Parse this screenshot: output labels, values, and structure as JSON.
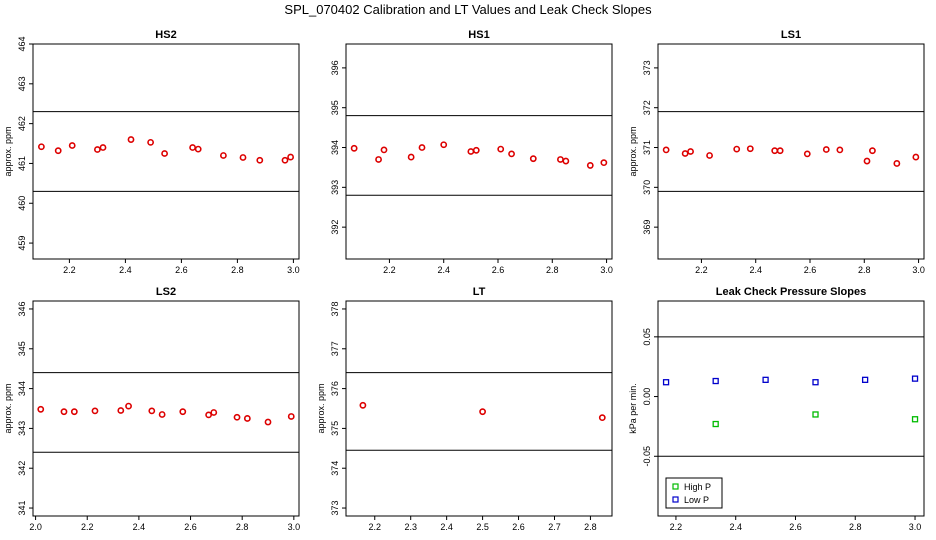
{
  "figure": {
    "title": "SPL_070402  Calibration and LT Values and Leak Check Slopes"
  },
  "colors": {
    "cal_points": "#dd0000",
    "high_p": "#00bb00",
    "low_p": "#0000cc",
    "axes": "#000000",
    "background": "#ffffff"
  },
  "chart_data": [
    {
      "type": "scatter",
      "title": "HS2",
      "ylabel": "approx. ppm",
      "xlim": [
        2.07,
        3.02
      ],
      "ylim": [
        458.6,
        464.0
      ],
      "xticks": [
        "2.2",
        "2.4",
        "2.6",
        "2.8",
        "3.0"
      ],
      "xtick_values": [
        2.2,
        2.4,
        2.6,
        2.8,
        3.0
      ],
      "yticks": [
        "459",
        "460",
        "461",
        "462",
        "463",
        "464"
      ],
      "ytick_values": [
        459,
        460,
        461,
        462,
        463,
        464
      ],
      "hlines": [
        460.3,
        462.3
      ],
      "series": [
        {
          "color": "#dd0000",
          "marker": "circle",
          "x": [
            2.1,
            2.16,
            2.21,
            2.3,
            2.32,
            2.42,
            2.49,
            2.54,
            2.64,
            2.66,
            2.75,
            2.82,
            2.88,
            2.97,
            2.99
          ],
          "y": [
            461.42,
            461.32,
            461.45,
            461.35,
            461.4,
            461.6,
            461.53,
            461.25,
            461.4,
            461.36,
            461.2,
            461.15,
            461.08,
            461.08,
            461.16
          ]
        }
      ]
    },
    {
      "type": "scatter",
      "title": "HS1",
      "ylabel": "",
      "xlim": [
        2.04,
        3.02
      ],
      "ylim": [
        391.2,
        396.6
      ],
      "xticks": [
        "2.2",
        "2.4",
        "2.6",
        "2.8",
        "3.0"
      ],
      "xtick_values": [
        2.2,
        2.4,
        2.6,
        2.8,
        3.0
      ],
      "yticks": [
        "392",
        "393",
        "394",
        "395",
        "396"
      ],
      "ytick_values": [
        392,
        393,
        394,
        395,
        396
      ],
      "hlines": [
        392.8,
        394.8
      ],
      "series": [
        {
          "color": "#dd0000",
          "marker": "circle",
          "x": [
            2.07,
            2.16,
            2.18,
            2.28,
            2.32,
            2.4,
            2.5,
            2.52,
            2.61,
            2.65,
            2.73,
            2.83,
            2.85,
            2.94,
            2.99
          ],
          "y": [
            393.98,
            393.7,
            393.94,
            393.76,
            394.0,
            394.07,
            393.9,
            393.93,
            393.96,
            393.84,
            393.72,
            393.7,
            393.66,
            393.55,
            393.62
          ]
        }
      ]
    },
    {
      "type": "scatter",
      "title": "LS1",
      "ylabel": "approx. ppm",
      "xlim": [
        2.04,
        3.02
      ],
      "ylim": [
        368.2,
        373.6
      ],
      "xticks": [
        "2.2",
        "2.4",
        "2.6",
        "2.8",
        "3.0"
      ],
      "xtick_values": [
        2.2,
        2.4,
        2.6,
        2.8,
        3.0
      ],
      "yticks": [
        "369",
        "370",
        "371",
        "372",
        "373"
      ],
      "ytick_values": [
        369,
        370,
        371,
        372,
        373
      ],
      "hlines": [
        369.9,
        371.9
      ],
      "series": [
        {
          "color": "#dd0000",
          "marker": "circle",
          "x": [
            2.07,
            2.14,
            2.16,
            2.23,
            2.33,
            2.38,
            2.47,
            2.49,
            2.59,
            2.66,
            2.71,
            2.81,
            2.83,
            2.92,
            2.99
          ],
          "y": [
            370.94,
            370.85,
            370.9,
            370.8,
            370.96,
            370.97,
            370.92,
            370.92,
            370.84,
            370.95,
            370.94,
            370.66,
            370.92,
            370.6,
            370.76
          ]
        }
      ]
    },
    {
      "type": "scatter",
      "title": "LS2",
      "ylabel": "approx. ppm",
      "xlim": [
        1.99,
        3.02
      ],
      "ylim": [
        340.8,
        346.2
      ],
      "xticks": [
        "2.0",
        "2.2",
        "2.4",
        "2.6",
        "2.8",
        "3.0"
      ],
      "xtick_values": [
        2.0,
        2.2,
        2.4,
        2.6,
        2.8,
        3.0
      ],
      "yticks": [
        "341",
        "342",
        "343",
        "344",
        "345",
        "346"
      ],
      "ytick_values": [
        341,
        342,
        343,
        344,
        345,
        346
      ],
      "hlines": [
        342.4,
        344.4
      ],
      "series": [
        {
          "color": "#dd0000",
          "marker": "circle",
          "x": [
            2.02,
            2.11,
            2.15,
            2.23,
            2.33,
            2.36,
            2.45,
            2.49,
            2.57,
            2.67,
            2.69,
            2.78,
            2.82,
            2.9,
            2.99
          ],
          "y": [
            343.48,
            343.42,
            343.42,
            343.44,
            343.45,
            343.56,
            343.44,
            343.35,
            343.42,
            343.34,
            343.4,
            343.28,
            343.25,
            343.16,
            343.3
          ]
        }
      ]
    },
    {
      "type": "scatter",
      "title": "LT",
      "ylabel": "approx. ppm",
      "xlim": [
        2.12,
        2.86
      ],
      "ylim": [
        372.8,
        378.2
      ],
      "xticks": [
        "2.2",
        "2.3",
        "2.4",
        "2.5",
        "2.6",
        "2.7",
        "2.8"
      ],
      "xtick_values": [
        2.2,
        2.3,
        2.4,
        2.5,
        2.6,
        2.7,
        2.8
      ],
      "yticks": [
        "373",
        "374",
        "375",
        "376",
        "377",
        "378"
      ],
      "ytick_values": [
        373,
        374,
        375,
        376,
        377,
        378
      ],
      "hlines": [
        374.45,
        376.4
      ],
      "series": [
        {
          "color": "#dd0000",
          "marker": "circle",
          "x": [
            2.167,
            2.5,
            2.833
          ],
          "y": [
            375.58,
            375.42,
            375.27
          ]
        }
      ]
    },
    {
      "type": "scatter",
      "title": "Leak Check Pressure Slopes",
      "ylabel": "kPa per min.",
      "xlim": [
        2.14,
        3.03
      ],
      "ylim": [
        -0.1,
        0.08
      ],
      "xticks": [
        "2.2",
        "2.4",
        "2.6",
        "2.8",
        "3.0"
      ],
      "xtick_values": [
        2.2,
        2.4,
        2.6,
        2.8,
        3.0
      ],
      "yticks": [
        "-0.05",
        "0.00",
        "0.05"
      ],
      "ytick_values": [
        -0.05,
        0.0,
        0.05
      ],
      "hlines": [
        -0.05,
        0.05
      ],
      "legend": {
        "position": "bottom-left",
        "entries": [
          "High P",
          "Low P"
        ]
      },
      "series": [
        {
          "name": "High P",
          "color": "#00bb00",
          "marker": "square",
          "x": [
            2.333,
            2.667,
            3.0
          ],
          "y": [
            -0.023,
            -0.015,
            -0.019
          ]
        },
        {
          "name": "Low P",
          "color": "#0000cc",
          "marker": "square",
          "x": [
            2.167,
            2.333,
            2.5,
            2.667,
            2.833,
            3.0
          ],
          "y": [
            0.012,
            0.013,
            0.014,
            0.012,
            0.014,
            0.015
          ]
        }
      ]
    }
  ]
}
